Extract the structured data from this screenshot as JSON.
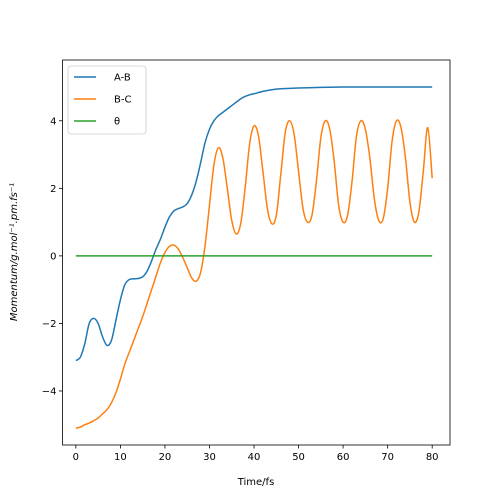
{
  "chart_data": {
    "type": "line",
    "title": "",
    "xlabel": "Time/fs",
    "ylabel": "Momentum/g.mol⁻¹.pm.fs⁻¹",
    "xlim": [
      -3,
      84
    ],
    "ylim": [
      -5.6,
      5.8
    ],
    "xticks": [
      0,
      10,
      20,
      30,
      40,
      50,
      60,
      70,
      80
    ],
    "yticks": [
      -4,
      -2,
      0,
      2,
      4
    ],
    "grid": false,
    "legend_position": "top-left",
    "series": [
      {
        "name": "A-B",
        "color": "#1f77b4",
        "x": [
          0,
          1,
          2,
          3,
          4,
          5,
          6,
          7,
          8,
          9,
          10,
          11,
          12,
          13,
          14,
          15,
          16,
          17,
          18,
          19,
          20,
          21,
          22,
          23,
          24,
          25,
          26,
          27,
          28,
          29,
          30,
          31,
          32,
          33,
          34,
          35,
          36,
          37,
          38,
          39,
          40,
          42,
          44,
          46,
          48,
          50,
          55,
          60,
          65,
          70,
          75,
          80
        ],
        "y": [
          -3.1,
          -3.0,
          -2.6,
          -2.0,
          -1.85,
          -2.0,
          -2.4,
          -2.65,
          -2.5,
          -1.9,
          -1.3,
          -0.85,
          -0.7,
          -0.68,
          -0.67,
          -0.62,
          -0.45,
          -0.15,
          0.2,
          0.5,
          0.85,
          1.15,
          1.33,
          1.4,
          1.45,
          1.55,
          1.8,
          2.2,
          2.75,
          3.35,
          3.75,
          4.0,
          4.15,
          4.25,
          4.35,
          4.45,
          4.55,
          4.65,
          4.72,
          4.77,
          4.8,
          4.87,
          4.92,
          4.95,
          4.96,
          4.97,
          4.99,
          5.0,
          5.0,
          5.0,
          5.0,
          5.0
        ]
      },
      {
        "name": "B-C",
        "color": "#ff7f0e",
        "x": [
          0,
          1,
          2,
          3,
          4,
          5,
          6,
          7,
          8,
          9,
          10,
          11,
          12,
          13,
          14,
          15,
          16,
          17,
          18,
          19,
          20,
          21,
          22,
          23,
          24,
          25,
          26,
          27,
          28,
          29,
          30,
          31,
          32,
          33,
          34,
          35,
          36,
          37,
          38,
          39,
          40,
          41,
          42,
          43,
          44,
          45,
          46,
          47,
          48,
          49,
          50,
          51,
          52,
          53,
          54,
          55,
          56,
          57,
          58,
          59,
          60,
          61,
          62,
          63,
          64,
          65,
          66,
          67,
          68,
          69,
          70,
          71,
          72,
          73,
          74,
          75,
          76,
          77,
          78,
          79,
          80
        ],
        "y": [
          -5.1,
          -5.07,
          -5.0,
          -4.95,
          -4.88,
          -4.8,
          -4.68,
          -4.55,
          -4.35,
          -4.05,
          -3.65,
          -3.2,
          -2.85,
          -2.5,
          -2.15,
          -1.8,
          -1.4,
          -1.0,
          -0.6,
          -0.2,
          0.1,
          0.28,
          0.32,
          0.2,
          -0.05,
          -0.35,
          -0.65,
          -0.75,
          -0.5,
          0.3,
          1.5,
          2.7,
          3.2,
          2.9,
          2.0,
          1.05,
          0.65,
          0.95,
          2.0,
          3.3,
          3.85,
          3.55,
          2.5,
          1.4,
          0.95,
          1.2,
          2.4,
          3.65,
          4.0,
          3.6,
          2.5,
          1.4,
          1.0,
          1.2,
          2.2,
          3.5,
          4.0,
          3.75,
          2.8,
          1.5,
          1.0,
          1.2,
          2.2,
          3.55,
          4.0,
          3.75,
          2.9,
          1.7,
          1.05,
          1.1,
          2.0,
          3.4,
          4.0,
          3.8,
          2.9,
          1.6,
          1.0,
          1.3,
          2.5,
          3.8,
          2.3
        ]
      },
      {
        "name": "θ",
        "color": "#2ca02c",
        "x": [
          0,
          80
        ],
        "y": [
          0,
          0
        ]
      }
    ]
  }
}
